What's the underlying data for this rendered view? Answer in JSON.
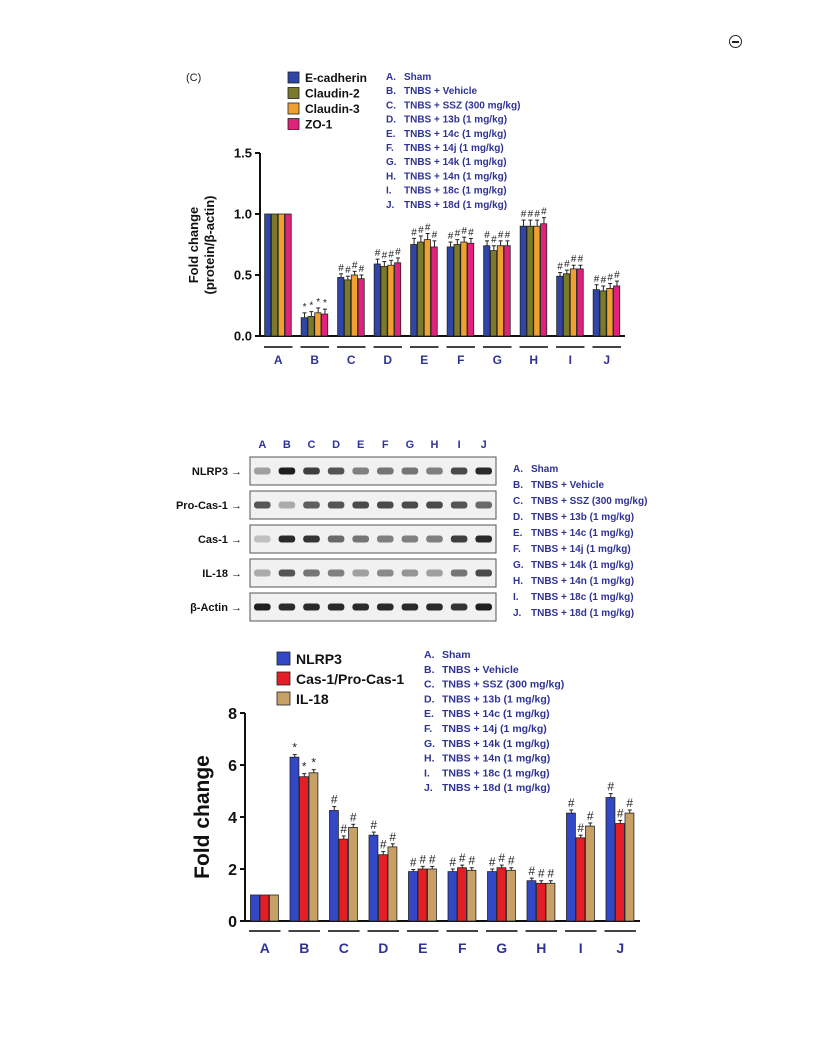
{
  "page": {
    "panel_label": "(C)",
    "corner_icon": "open-access-icon"
  },
  "colors": {
    "axis": "#111111",
    "label_blue": "#2f3394"
  },
  "chart_data": [
    {
      "type": "bar",
      "ylabel": "Fold change (protein/β-actin)",
      "ylim": [
        0,
        1.5
      ],
      "yticks": [
        "0.0",
        "0.5",
        "1.0",
        "1.5"
      ],
      "categories": [
        "A",
        "B",
        "C",
        "D",
        "E",
        "F",
        "G",
        "H",
        "I",
        "J"
      ],
      "legend_entries": [
        {
          "name": "A.",
          "text": "Sham"
        },
        {
          "name": "B.",
          "text": "TNBS + Vehicle"
        },
        {
          "name": "C.",
          "text": "TNBS + SSZ (300 mg/kg)"
        },
        {
          "name": "D.",
          "text": "TNBS + 13b (1 mg/kg)"
        },
        {
          "name": "E.",
          "text": "TNBS + 14c (1 mg/kg)"
        },
        {
          "name": "F.",
          "text": "TNBS + 14j (1 mg/kg)"
        },
        {
          "name": "G.",
          "text": "TNBS + 14k (1 mg/kg)"
        },
        {
          "name": "H.",
          "text": "TNBS + 14n (1 mg/kg)"
        },
        {
          "name": "I.",
          "text": "TNBS + 18c (1 mg/kg)"
        },
        {
          "name": "J.",
          "text": "TNBS + 18d (1 mg/kg)"
        }
      ],
      "series": [
        {
          "name": "E-cadherin",
          "color": "#3045a8",
          "values": [
            1.0,
            0.15,
            0.48,
            0.59,
            0.75,
            0.73,
            0.74,
            0.9,
            0.49,
            0.38
          ],
          "errors": [
            0,
            0.04,
            0.03,
            0.04,
            0.05,
            0.04,
            0.04,
            0.05,
            0.03,
            0.04
          ],
          "marks": [
            "",
            "*",
            "#",
            "#",
            "#",
            "#",
            "#",
            "#",
            "#",
            "#"
          ]
        },
        {
          "name": "Claudin-2",
          "color": "#7a7a2a",
          "values": [
            1.0,
            0.16,
            0.46,
            0.57,
            0.77,
            0.75,
            0.7,
            0.9,
            0.51,
            0.37
          ],
          "errors": [
            0,
            0.04,
            0.03,
            0.04,
            0.05,
            0.04,
            0.04,
            0.05,
            0.03,
            0.04
          ],
          "marks": [
            "",
            "*",
            "#",
            "#",
            "#",
            "#",
            "#",
            "#",
            "#",
            "#"
          ]
        },
        {
          "name": "Claudin-3",
          "color": "#f0a030",
          "values": [
            1.0,
            0.19,
            0.5,
            0.58,
            0.79,
            0.77,
            0.74,
            0.9,
            0.55,
            0.39
          ],
          "errors": [
            0,
            0.04,
            0.03,
            0.04,
            0.05,
            0.04,
            0.04,
            0.05,
            0.03,
            0.04
          ],
          "marks": [
            "",
            "*",
            "#",
            "#",
            "#",
            "#",
            "#",
            "#",
            "#",
            "#"
          ]
        },
        {
          "name": "ZO-1",
          "color": "#e0237a",
          "values": [
            1.0,
            0.18,
            0.47,
            0.6,
            0.73,
            0.76,
            0.74,
            0.92,
            0.55,
            0.41
          ],
          "errors": [
            0,
            0.04,
            0.03,
            0.04,
            0.05,
            0.04,
            0.04,
            0.05,
            0.03,
            0.04
          ],
          "marks": [
            "",
            "*",
            "#",
            "#",
            "#",
            "#",
            "#",
            "#",
            "#",
            "#"
          ]
        }
      ]
    },
    {
      "type": "blot",
      "lanes": [
        "A",
        "B",
        "C",
        "D",
        "E",
        "F",
        "G",
        "H",
        "I",
        "J"
      ],
      "rows": [
        {
          "label": "NLRP3",
          "arrow": "→",
          "intensity": [
            0.35,
            0.95,
            0.8,
            0.7,
            0.5,
            0.55,
            0.55,
            0.5,
            0.75,
            0.9
          ]
        },
        {
          "label": "Pro-Cas-1",
          "arrow": "→",
          "intensity": [
            0.7,
            0.3,
            0.65,
            0.7,
            0.75,
            0.75,
            0.75,
            0.75,
            0.7,
            0.6
          ]
        },
        {
          "label": "Cas-1",
          "arrow": "→",
          "intensity": [
            0.2,
            0.9,
            0.85,
            0.6,
            0.55,
            0.5,
            0.5,
            0.5,
            0.8,
            0.9
          ]
        },
        {
          "label": "IL-18",
          "arrow": "→",
          "intensity": [
            0.3,
            0.7,
            0.55,
            0.5,
            0.35,
            0.45,
            0.4,
            0.35,
            0.55,
            0.75
          ]
        },
        {
          "label": "β-Actin",
          "arrow": "→",
          "intensity": [
            0.95,
            0.9,
            0.9,
            0.9,
            0.9,
            0.9,
            0.9,
            0.9,
            0.85,
            0.95
          ]
        }
      ],
      "legend_entries": [
        {
          "name": "A.",
          "text": "Sham"
        },
        {
          "name": "B.",
          "text": "TNBS + Vehicle"
        },
        {
          "name": "C.",
          "text": "TNBS + SSZ (300 mg/kg)"
        },
        {
          "name": "D.",
          "text": "TNBS + 13b (1 mg/kg)"
        },
        {
          "name": "E.",
          "text": "TNBS + 14c (1 mg/kg)"
        },
        {
          "name": "F.",
          "text": "TNBS + 14j (1 mg/kg)"
        },
        {
          "name": "G.",
          "text": "TNBS + 14k (1 mg/kg)"
        },
        {
          "name": "H.",
          "text": "TNBS + 14n (1 mg/kg)"
        },
        {
          "name": "I.",
          "text": "TNBS + 18c (1 mg/kg)"
        },
        {
          "name": "J.",
          "text": "TNBS + 18d (1 mg/kg)"
        }
      ]
    },
    {
      "type": "bar",
      "ylabel": "Fold change",
      "ylim": [
        0,
        8
      ],
      "yticks": [
        "0",
        "2",
        "4",
        "6",
        "8"
      ],
      "categories": [
        "A",
        "B",
        "C",
        "D",
        "E",
        "F",
        "G",
        "H",
        "I",
        "J"
      ],
      "legend_entries": [
        {
          "name": "A.",
          "text": "Sham"
        },
        {
          "name": "B.",
          "text": "TNBS + Vehicle"
        },
        {
          "name": "C.",
          "text": "TNBS + SSZ (300 mg/kg)"
        },
        {
          "name": "D.",
          "text": "TNBS + 13b (1 mg/kg)"
        },
        {
          "name": "E.",
          "text": "TNBS + 14c (1 mg/kg)"
        },
        {
          "name": "F.",
          "text": "TNBS + 14j (1 mg/kg)"
        },
        {
          "name": "G.",
          "text": "TNBS + 14k (1 mg/kg)"
        },
        {
          "name": "H.",
          "text": "TNBS + 14n (1 mg/kg)"
        },
        {
          "name": "I.",
          "text": "TNBS + 18c (1 mg/kg)"
        },
        {
          "name": "J.",
          "text": "TNBS + 18d (1 mg/kg)"
        }
      ],
      "series": [
        {
          "name": "NLRP3",
          "color": "#3348c6",
          "values": [
            1.0,
            6.3,
            4.25,
            3.3,
            1.9,
            1.9,
            1.9,
            1.55,
            4.15,
            4.75
          ],
          "errors": [
            0,
            0.1,
            0.15,
            0.12,
            0.08,
            0.1,
            0.1,
            0.1,
            0.12,
            0.15
          ],
          "marks": [
            "",
            "*",
            "#",
            "#",
            "#",
            "#",
            "#",
            "#",
            "#",
            "#"
          ]
        },
        {
          "name": "Cas-1/Pro-Cas-1",
          "color": "#e31e24",
          "values": [
            1.0,
            5.55,
            3.15,
            2.55,
            2.0,
            2.05,
            2.05,
            1.45,
            3.2,
            3.75
          ],
          "errors": [
            0,
            0.12,
            0.12,
            0.12,
            0.1,
            0.1,
            0.1,
            0.1,
            0.1,
            0.12
          ],
          "marks": [
            "",
            "*",
            "#",
            "#",
            "#",
            "#",
            "#",
            "#",
            "#",
            "#"
          ]
        },
        {
          "name": "IL-18",
          "color": "#c8a065",
          "values": [
            1.0,
            5.7,
            3.6,
            2.85,
            2.0,
            1.95,
            1.95,
            1.45,
            3.65,
            4.15
          ],
          "errors": [
            0,
            0.12,
            0.12,
            0.12,
            0.1,
            0.1,
            0.1,
            0.1,
            0.12,
            0.12
          ],
          "marks": [
            "",
            "*",
            "#",
            "#",
            "#",
            "#",
            "#",
            "#",
            "#",
            "#"
          ]
        }
      ]
    }
  ]
}
